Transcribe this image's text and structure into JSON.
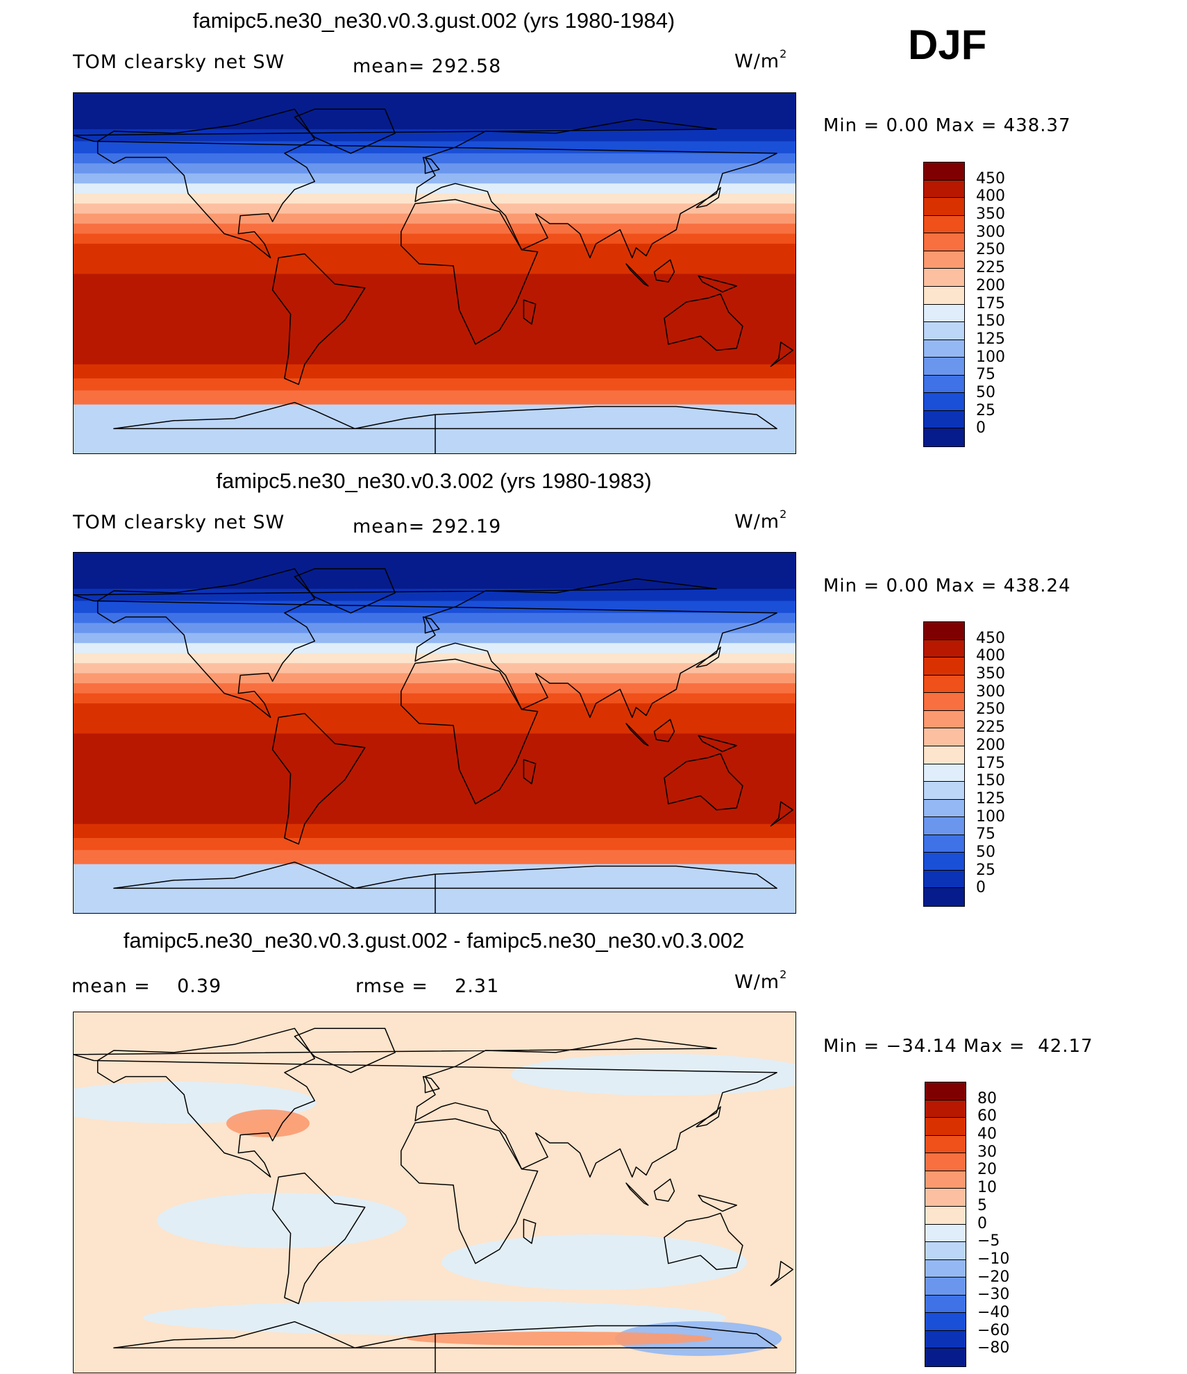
{
  "season": "DJF",
  "panels": [
    {
      "title": "famipc5.ne30_ne30.v0.3.gust.002 (yrs 1980-1984)",
      "left_label": "TOM clearsky net SW",
      "mid_label": "mean= 292.58",
      "unit_base": "W/m",
      "unit_exp": "2",
      "minmax": "Min =    0.00 Max = 438.37",
      "type": "field",
      "colorbar": {
        "labels": [
          "450",
          "400",
          "350",
          "300",
          "250",
          "225",
          "200",
          "175",
          "150",
          "125",
          "100",
          "75",
          "50",
          "25",
          "0"
        ],
        "colors": [
          "#7f0000",
          "#b81800",
          "#d93200",
          "#f0501a",
          "#f87040",
          "#fb9a70",
          "#fcc0a0",
          "#fde4cc",
          "#dfeefa",
          "#bcd6f8",
          "#94b8f4",
          "#6a96ee",
          "#3e72e6",
          "#1a4fd8",
          "#0b33b8",
          "#061c8c"
        ]
      }
    },
    {
      "title": "famipc5.ne30_ne30.v0.3.002 (yrs 1980-1983)",
      "left_label": "TOM clearsky net SW",
      "mid_label": "mean= 292.19",
      "unit_base": "W/m",
      "unit_exp": "2",
      "minmax": "Min =    0.00 Max = 438.24",
      "type": "field",
      "colorbar": {
        "labels": [
          "450",
          "400",
          "350",
          "300",
          "250",
          "225",
          "200",
          "175",
          "150",
          "125",
          "100",
          "75",
          "50",
          "25",
          "0"
        ],
        "colors": [
          "#7f0000",
          "#b81800",
          "#d93200",
          "#f0501a",
          "#f87040",
          "#fb9a70",
          "#fcc0a0",
          "#fde4cc",
          "#dfeefa",
          "#bcd6f8",
          "#94b8f4",
          "#6a96ee",
          "#3e72e6",
          "#1a4fd8",
          "#0b33b8",
          "#061c8c"
        ]
      }
    },
    {
      "title": "famipc5.ne30_ne30.v0.3.gust.002 - famipc5.ne30_ne30.v0.3.002",
      "left_label": "mean =    0.39",
      "mid_label": "rmse =    2.31",
      "unit_base": "W/m",
      "unit_exp": "2",
      "minmax": "Min = −34.14 Max =  42.17",
      "type": "diff",
      "colorbar": {
        "labels": [
          "80",
          "60",
          "40",
          "30",
          "20",
          "10",
          "5",
          "0",
          "−5",
          "−10",
          "−20",
          "−30",
          "−40",
          "−60",
          "−80"
        ],
        "colors": [
          "#7f0000",
          "#b81800",
          "#d93200",
          "#f0501a",
          "#f87040",
          "#fb9a70",
          "#fcc0a0",
          "#fde4cc",
          "#dfeefa",
          "#bcd6f8",
          "#94b8f4",
          "#6a96ee",
          "#3e72e6",
          "#1a4fd8",
          "#0b33b8",
          "#061c8c"
        ]
      }
    }
  ]
}
